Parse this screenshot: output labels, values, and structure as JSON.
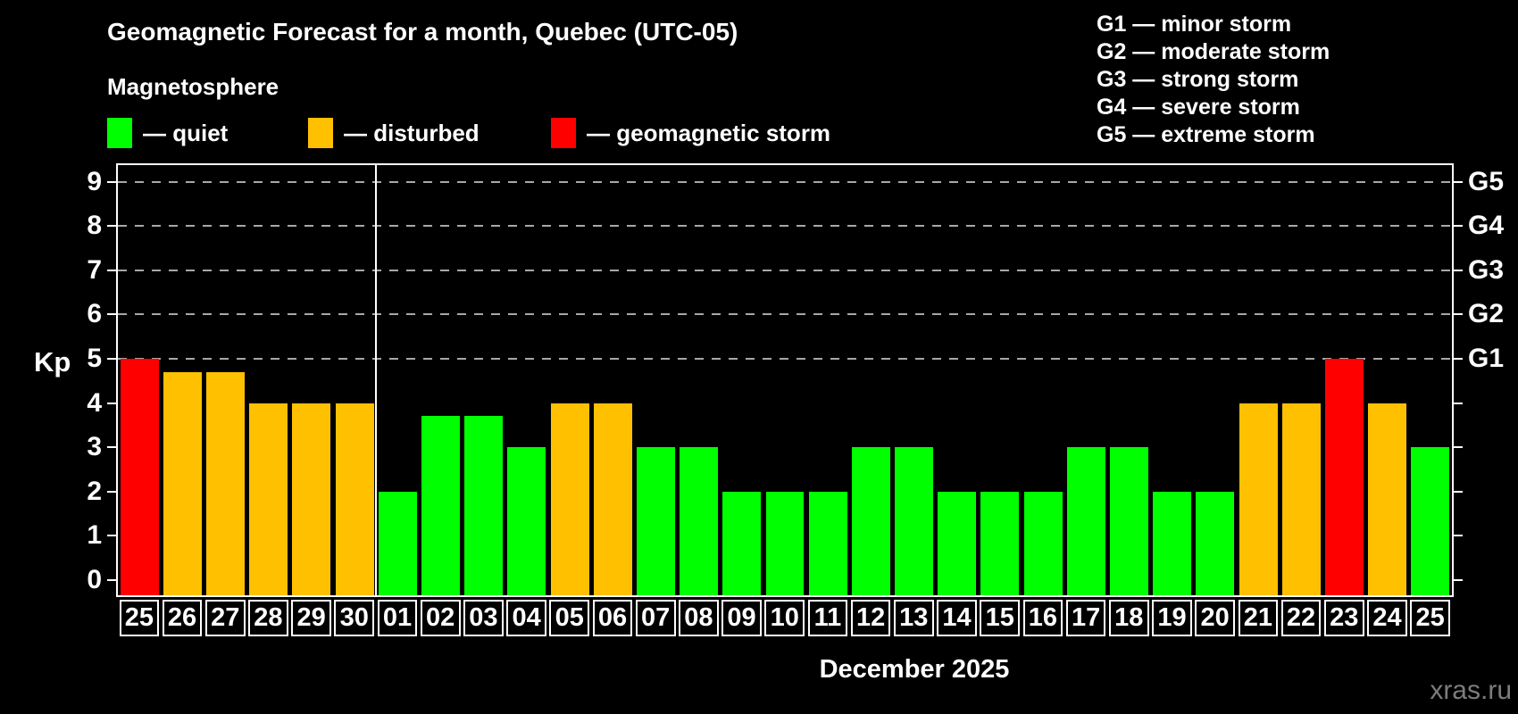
{
  "header": {
    "title": "Geomagnetic Forecast for a month, Quebec (UTC-05)",
    "subtitle": "Magnetosphere"
  },
  "legend": {
    "items": [
      {
        "status": "quiet",
        "label": "— quiet",
        "color": "#00ff00"
      },
      {
        "status": "disturbed",
        "label": "— disturbed",
        "color": "#ffc000"
      },
      {
        "status": "storm",
        "label": "— geomagnetic storm",
        "color": "#ff0000"
      }
    ]
  },
  "g_scale_legend": {
    "lines": [
      "G1 — minor storm",
      "G2 — moderate storm",
      "G3 — strong storm",
      "G4 — severe storm",
      "G5 — extreme storm"
    ]
  },
  "footer": {
    "watermark": "xras.ru"
  },
  "chart_data": {
    "type": "bar",
    "title": "Geomagnetic Forecast for a month, Quebec (UTC-05)",
    "xlabel": "December 2025",
    "ylabel": "Kp",
    "ylim": [
      0,
      9
    ],
    "yticks": [
      0,
      1,
      2,
      3,
      4,
      5,
      6,
      7,
      8,
      9
    ],
    "dashed_gridlines_at": [
      5,
      6,
      7,
      8,
      9
    ],
    "right_axis_labels": [
      {
        "value": 5,
        "label": "G1"
      },
      {
        "value": 6,
        "label": "G2"
      },
      {
        "value": 7,
        "label": "G3"
      },
      {
        "value": 8,
        "label": "G4"
      },
      {
        "value": 9,
        "label": "G5"
      }
    ],
    "month_separator_after_index": 5,
    "status_colors": {
      "quiet": "#00ff00",
      "disturbed": "#ffc000",
      "storm": "#ff0000"
    },
    "axis_color": "#ffffff",
    "gridline_color": "#a8a8a8",
    "bars": [
      {
        "day": "25",
        "kp": 5,
        "status": "storm"
      },
      {
        "day": "26",
        "kp": 4.7,
        "status": "disturbed"
      },
      {
        "day": "27",
        "kp": 4.7,
        "status": "disturbed"
      },
      {
        "day": "28",
        "kp": 4,
        "status": "disturbed"
      },
      {
        "day": "29",
        "kp": 4,
        "status": "disturbed"
      },
      {
        "day": "30",
        "kp": 4,
        "status": "disturbed"
      },
      {
        "day": "01",
        "kp": 2,
        "status": "quiet"
      },
      {
        "day": "02",
        "kp": 3.7,
        "status": "quiet"
      },
      {
        "day": "03",
        "kp": 3.7,
        "status": "quiet"
      },
      {
        "day": "04",
        "kp": 3,
        "status": "quiet"
      },
      {
        "day": "05",
        "kp": 4,
        "status": "disturbed"
      },
      {
        "day": "06",
        "kp": 4,
        "status": "disturbed"
      },
      {
        "day": "07",
        "kp": 3,
        "status": "quiet"
      },
      {
        "day": "08",
        "kp": 3,
        "status": "quiet"
      },
      {
        "day": "09",
        "kp": 2,
        "status": "quiet"
      },
      {
        "day": "10",
        "kp": 2,
        "status": "quiet"
      },
      {
        "day": "11",
        "kp": 2,
        "status": "quiet"
      },
      {
        "day": "12",
        "kp": 3,
        "status": "quiet"
      },
      {
        "day": "13",
        "kp": 3,
        "status": "quiet"
      },
      {
        "day": "14",
        "kp": 2,
        "status": "quiet"
      },
      {
        "day": "15",
        "kp": 2,
        "status": "quiet"
      },
      {
        "day": "16",
        "kp": 2,
        "status": "quiet"
      },
      {
        "day": "17",
        "kp": 3,
        "status": "quiet"
      },
      {
        "day": "18",
        "kp": 3,
        "status": "quiet"
      },
      {
        "day": "19",
        "kp": 2,
        "status": "quiet"
      },
      {
        "day": "20",
        "kp": 2,
        "status": "quiet"
      },
      {
        "day": "21",
        "kp": 4,
        "status": "disturbed"
      },
      {
        "day": "22",
        "kp": 4,
        "status": "disturbed"
      },
      {
        "day": "23",
        "kp": 5,
        "status": "storm"
      },
      {
        "day": "24",
        "kp": 4,
        "status": "disturbed"
      },
      {
        "day": "25",
        "kp": 3,
        "status": "quiet"
      }
    ]
  }
}
